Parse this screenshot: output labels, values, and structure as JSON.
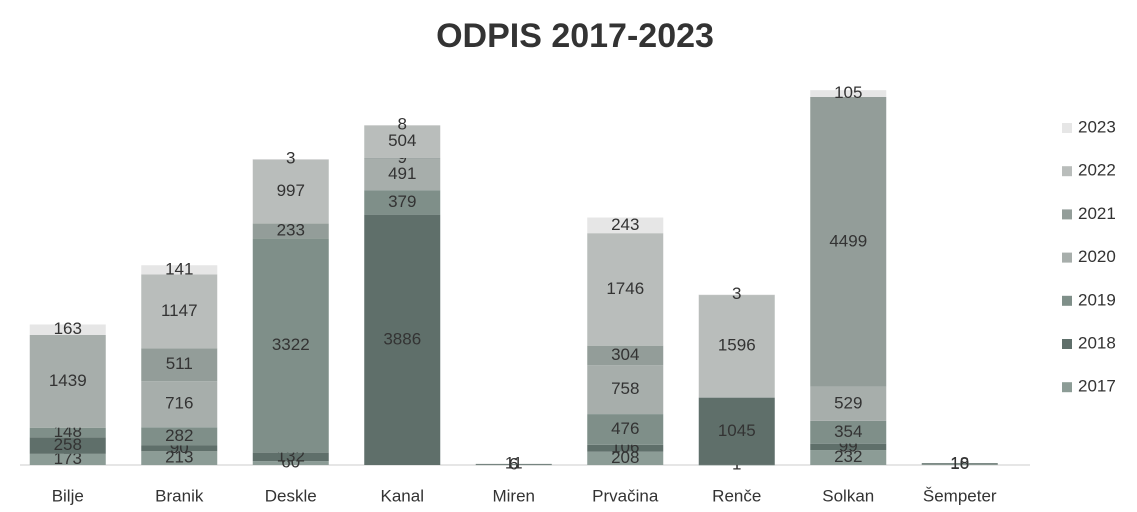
{
  "chart_data": {
    "type": "stacked_bar",
    "title": "ODPIS 2017-2023",
    "categories": [
      "Bilje",
      "Branik",
      "Deskle",
      "Kanal",
      "Miren",
      "Prvačina",
      "Renče",
      "Solkan",
      "Šempeter"
    ],
    "series": [
      {
        "name": "2017",
        "color": "#8c9c96",
        "values": [
          173,
          213,
          60,
          null,
          6,
          208,
          1,
          232,
          10
        ]
      },
      {
        "name": "2018",
        "color": "#5f6f6a",
        "values": [
          258,
          90,
          132,
          3886,
          11,
          106,
          1045,
          99,
          18
        ]
      },
      {
        "name": "2019",
        "color": "#7f8f89",
        "values": [
          148,
          282,
          3322,
          379,
          null,
          476,
          null,
          354,
          null
        ]
      },
      {
        "name": "2020",
        "color": "#a7aeab",
        "values": [
          1439,
          716,
          null,
          491,
          null,
          758,
          null,
          529,
          null
        ]
      },
      {
        "name": "2021",
        "color": "#939d99",
        "values": [
          null,
          511,
          233,
          9,
          null,
          304,
          null,
          4499,
          null
        ]
      },
      {
        "name": "2022",
        "color": "#b9bdbb",
        "values": [
          null,
          1147,
          997,
          504,
          null,
          1746,
          1596,
          null,
          null
        ]
      },
      {
        "name": "2023",
        "color": "#e6e6e6",
        "values": [
          163,
          141,
          3,
          8,
          null,
          243,
          3,
          105,
          null
        ]
      }
    ]
  }
}
